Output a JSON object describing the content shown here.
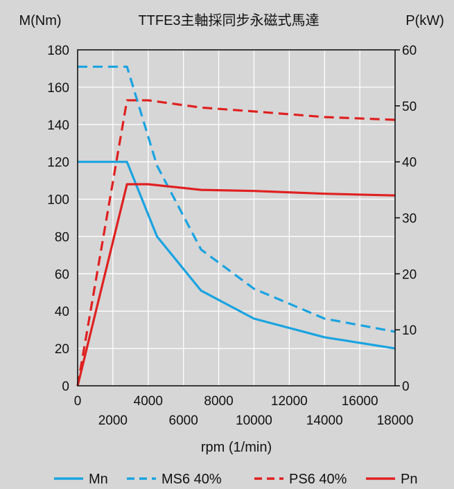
{
  "chart_data": {
    "type": "line",
    "title": "TTFE3主軸採同步永磁式馬達",
    "xlabel": "rpm (1/min)",
    "ylabel_left": "M(Nm)",
    "ylabel_right": "P(kW)",
    "xlim": [
      0,
      18000
    ],
    "ylim_left": [
      0,
      180
    ],
    "ylim_right": [
      0,
      60
    ],
    "x_ticks": [
      0,
      2000,
      4000,
      6000,
      8000,
      10000,
      12000,
      14000,
      16000,
      18000
    ],
    "x_tick_labels": [
      "0",
      "2000",
      "4000",
      "6000",
      "8000",
      "10000",
      "12000",
      "14000",
      "16000",
      "18000"
    ],
    "y_ticks_left": [
      0,
      20,
      40,
      60,
      80,
      100,
      120,
      140,
      160,
      180
    ],
    "y_tick_labels_left": [
      "0",
      "20",
      "40",
      "60",
      "80",
      "100",
      "120",
      "140",
      "160",
      "180"
    ],
    "y_ticks_right": [
      0,
      10,
      20,
      30,
      40,
      50,
      60
    ],
    "y_tick_labels_right": [
      "0",
      "10",
      "20",
      "30",
      "40",
      "50",
      "60"
    ],
    "grid": true,
    "legend_position": "bottom",
    "series": [
      {
        "name": "Mn",
        "axis": "left",
        "color": "#1aa3e0",
        "style": "solid",
        "x": [
          0,
          2800,
          4500,
          7000,
          10000,
          14000,
          18000
        ],
        "y": [
          120,
          120,
          80,
          51,
          36,
          26,
          20
        ]
      },
      {
        "name": "MS6 40%",
        "axis": "left",
        "color": "#1aa3e0",
        "style": "dashed",
        "x": [
          0,
          2800,
          4500,
          7000,
          10000,
          14000,
          18000
        ],
        "y": [
          171,
          171,
          118,
          73,
          52,
          36,
          29
        ]
      },
      {
        "name": "PS6 40%",
        "axis": "right",
        "color": "#e02020",
        "style": "dashed",
        "x": [
          0,
          2800,
          4000,
          7000,
          10000,
          14000,
          18000
        ],
        "y": [
          0,
          51,
          51,
          49.7,
          49,
          48,
          47.5
        ]
      },
      {
        "name": "Pn",
        "axis": "right",
        "color": "#e02020",
        "style": "solid",
        "x": [
          0,
          2800,
          4000,
          7000,
          10000,
          14000,
          18000
        ],
        "y": [
          0,
          36,
          36,
          35,
          34.8,
          34.3,
          34
        ]
      }
    ]
  }
}
